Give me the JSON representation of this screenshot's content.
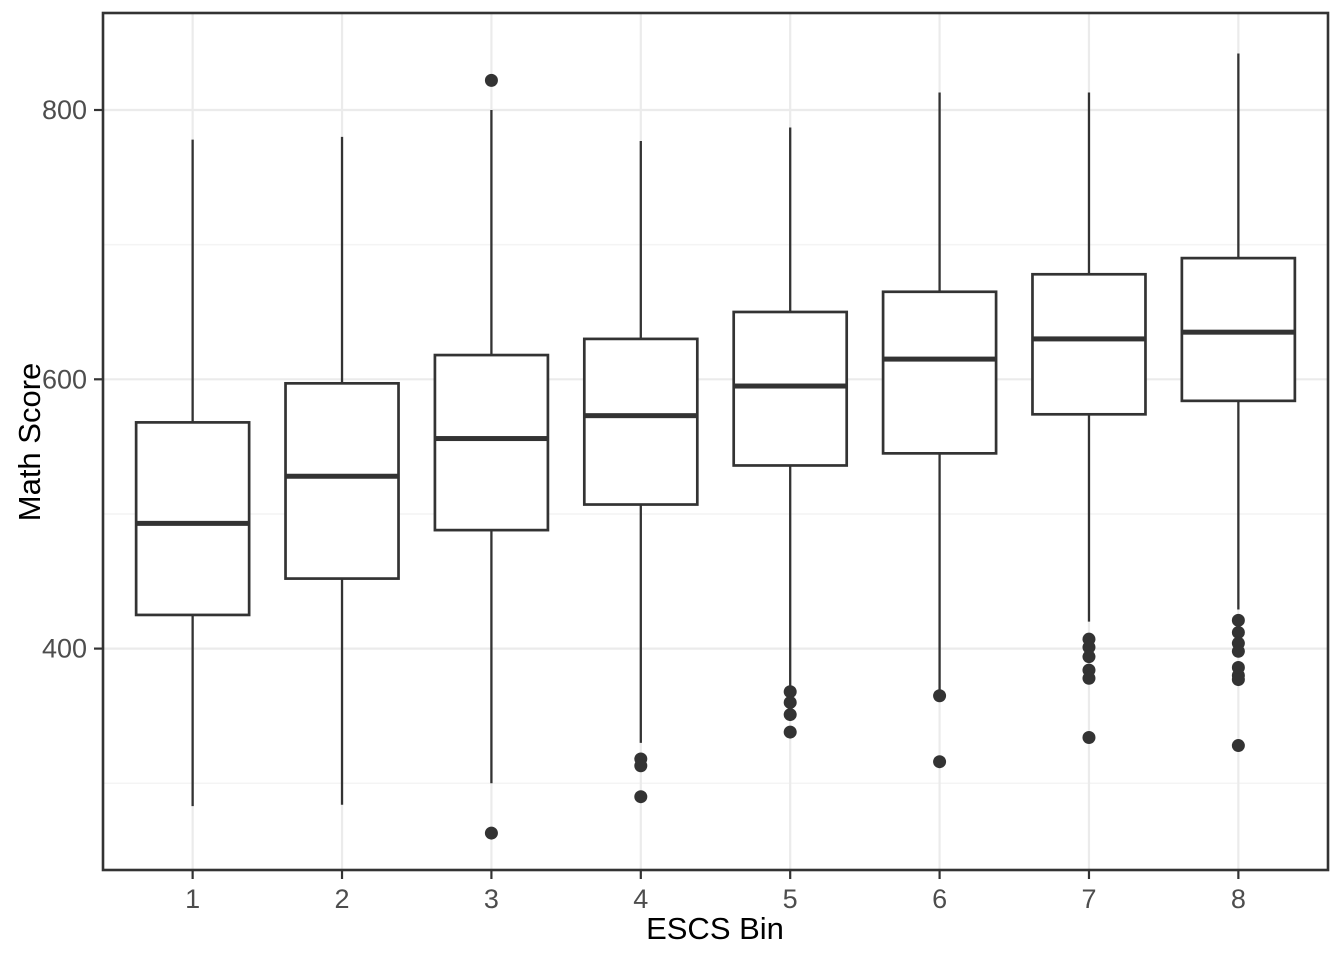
{
  "chart_data": {
    "type": "boxplot",
    "title": "",
    "xlabel": "ESCS Bin",
    "ylabel": "Math Score",
    "categories": [
      "1",
      "2",
      "3",
      "4",
      "5",
      "6",
      "7",
      "8"
    ],
    "series": [
      {
        "category": "1",
        "whisker_low": 283,
        "q1": 425,
        "median": 493,
        "q3": 568,
        "whisker_high": 778,
        "outliers": []
      },
      {
        "category": "2",
        "whisker_low": 284,
        "q1": 452,
        "median": 528,
        "q3": 597,
        "whisker_high": 780,
        "outliers": []
      },
      {
        "category": "3",
        "whisker_low": 300,
        "q1": 488,
        "median": 556,
        "q3": 618,
        "whisker_high": 800,
        "outliers": [
          822,
          263
        ]
      },
      {
        "category": "4",
        "whisker_low": 330,
        "q1": 507,
        "median": 573,
        "q3": 630,
        "whisker_high": 777,
        "outliers": [
          318,
          313,
          290
        ]
      },
      {
        "category": "5",
        "whisker_low": 372,
        "q1": 536,
        "median": 595,
        "q3": 650,
        "whisker_high": 787,
        "outliers": [
          368,
          360,
          351,
          338
        ]
      },
      {
        "category": "6",
        "whisker_low": 369,
        "q1": 545,
        "median": 615,
        "q3": 665,
        "whisker_high": 813,
        "outliers": [
          365,
          316
        ]
      },
      {
        "category": "7",
        "whisker_low": 420,
        "q1": 574,
        "median": 630,
        "q3": 678,
        "whisker_high": 813,
        "outliers": [
          407,
          401,
          394,
          384,
          378,
          334
        ]
      },
      {
        "category": "8",
        "whisker_low": 429,
        "q1": 584,
        "median": 635,
        "q3": 690,
        "whisker_high": 842,
        "outliers": [
          421,
          412,
          404,
          398,
          386,
          380,
          377,
          328
        ]
      }
    ],
    "y_axis": {
      "tick_labels": [
        "400",
        "600",
        "800"
      ],
      "major_ticks": [
        400,
        600,
        800
      ],
      "minor_ticks": [
        300,
        500,
        700
      ],
      "range": [
        236,
        872
      ]
    },
    "x_axis": {
      "tick_labels": [
        "1",
        "2",
        "3",
        "4",
        "5",
        "6",
        "7",
        "8"
      ]
    },
    "grid": "on",
    "legend": "none",
    "colors": {
      "box_stroke": "#333333",
      "box_fill": "#ffffff",
      "median": "#333333",
      "whisker": "#333333",
      "outlier": "#333333",
      "grid_major": "#ebebeb",
      "grid_minor": "#f4f4f4",
      "panel_border": "#333333",
      "tick_mark": "#333333",
      "tick_label": "#4d4d4d",
      "axis_title": "#000000",
      "background": "#ffffff"
    }
  }
}
